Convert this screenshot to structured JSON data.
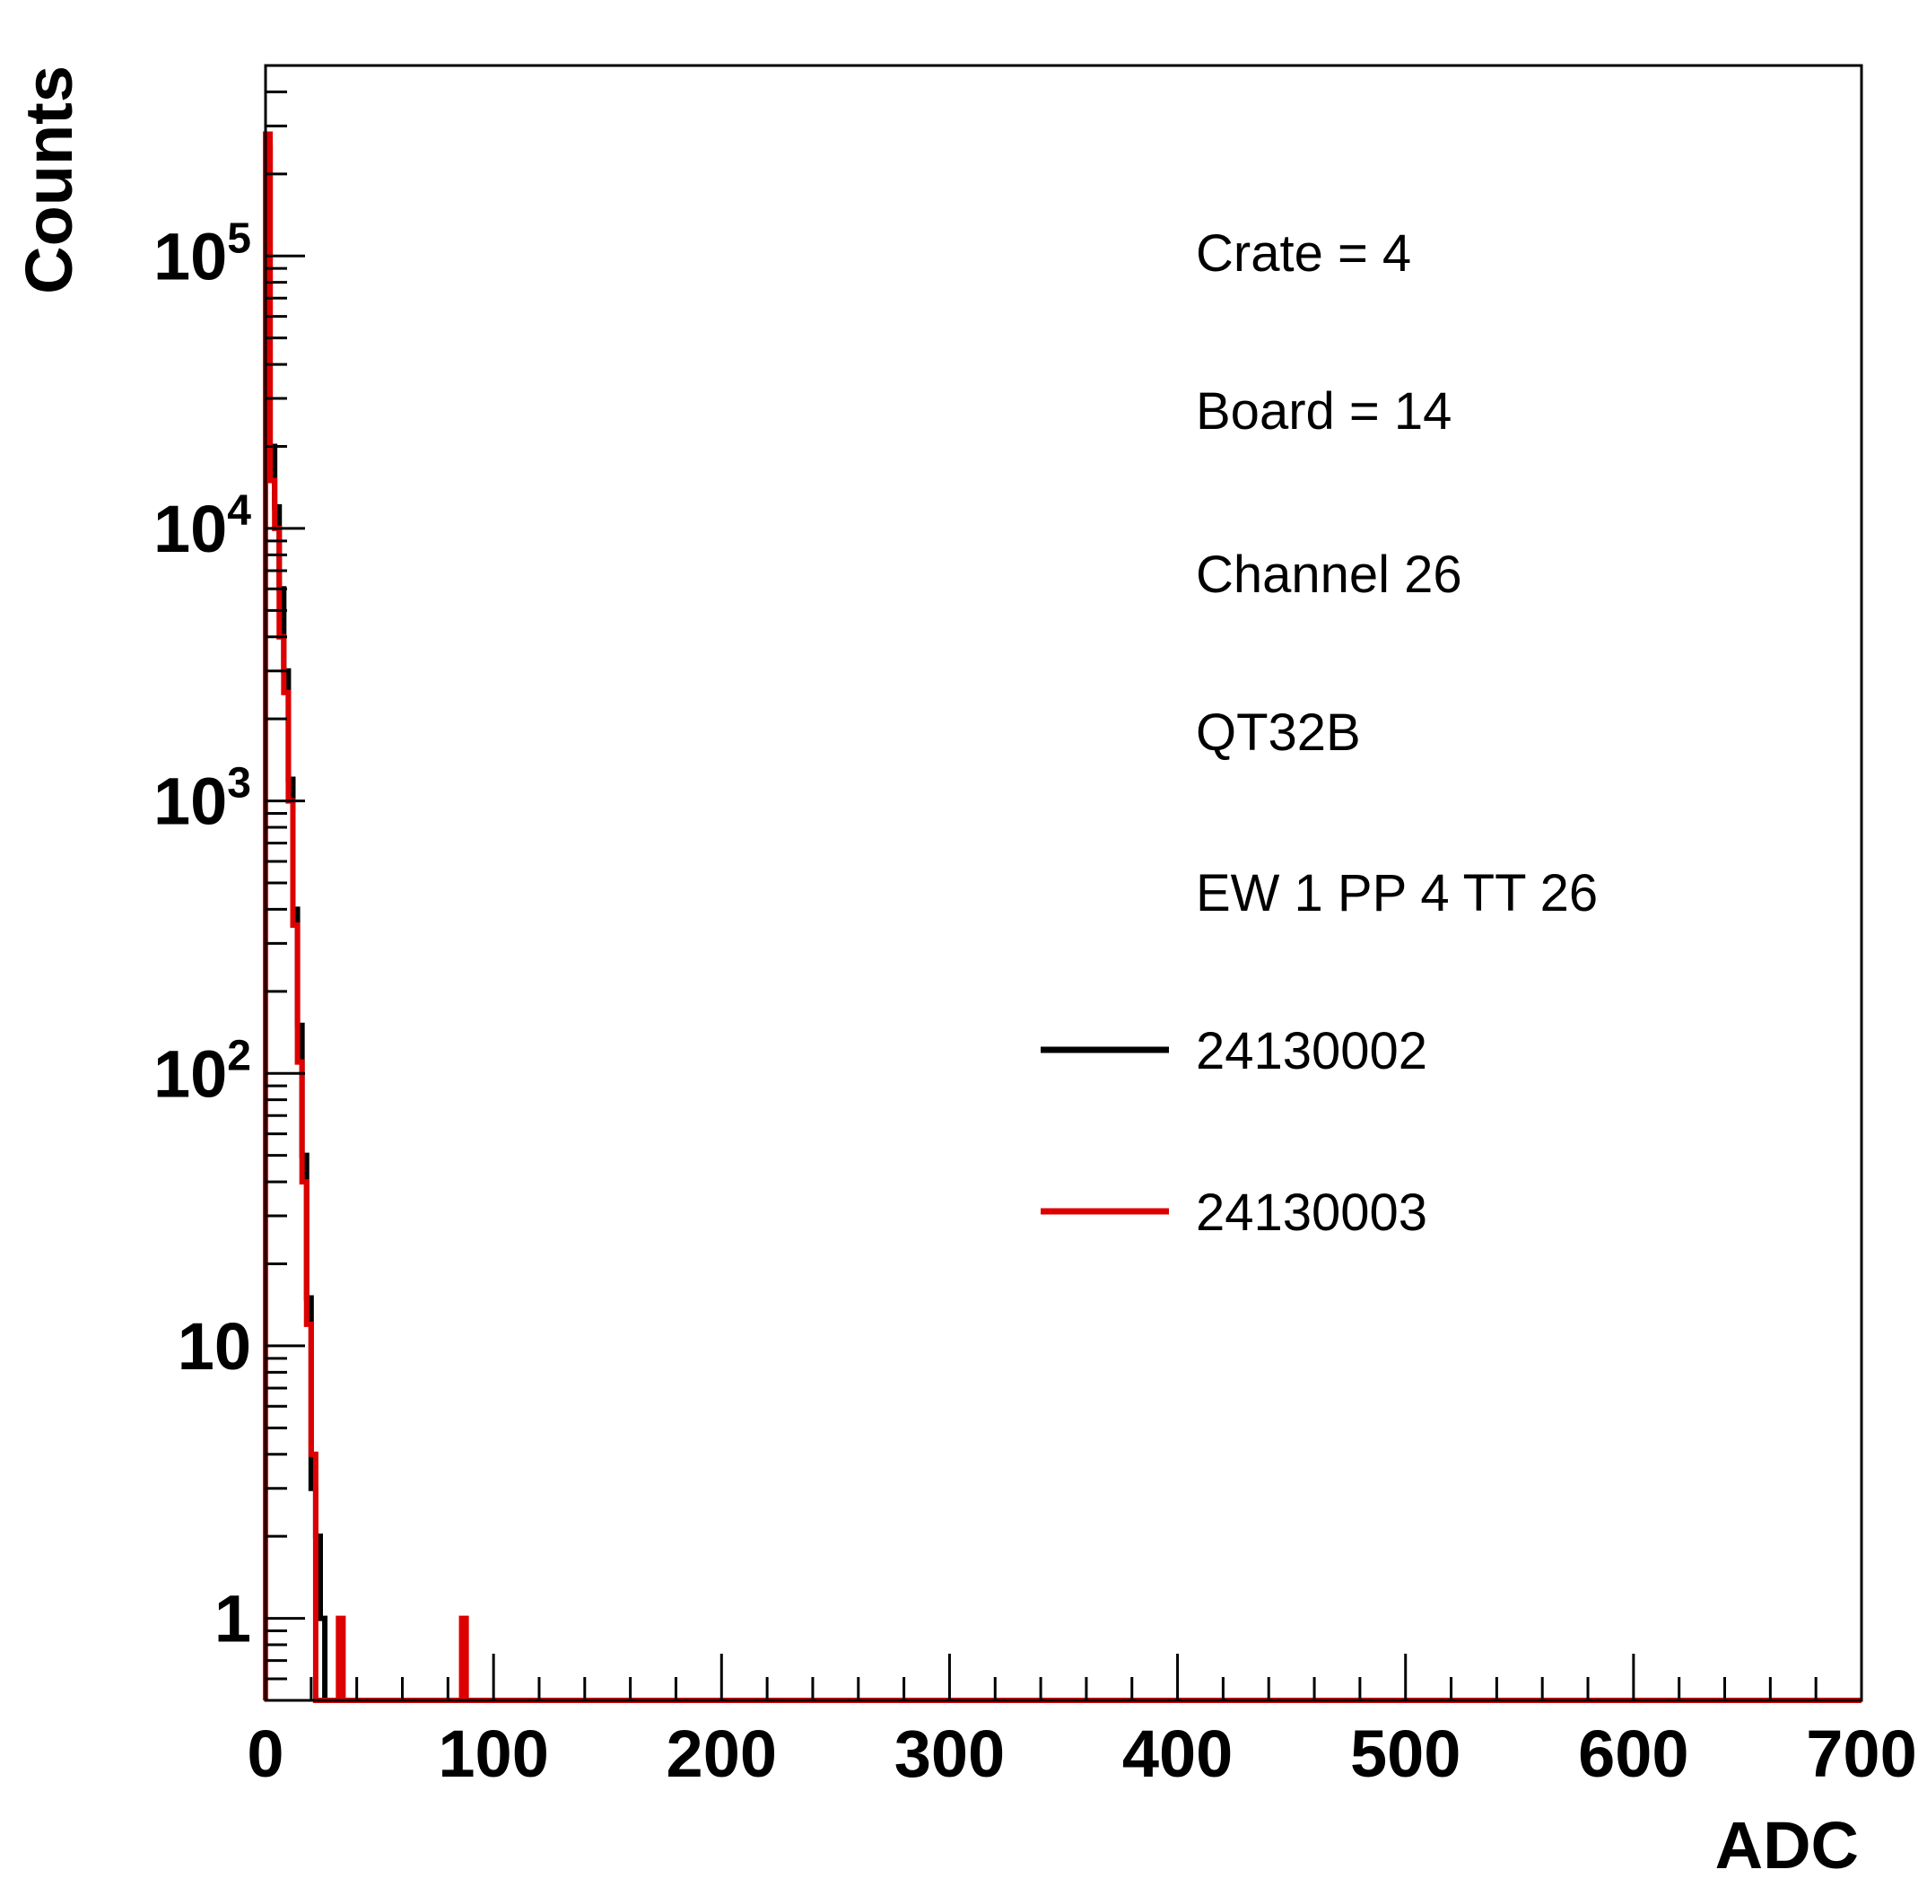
{
  "chart_data": {
    "type": "line",
    "style": "step-histogram",
    "title": "",
    "xlabel": "ADC",
    "ylabel": "Counts",
    "xlim": [
      0,
      700
    ],
    "ylim": [
      0.5,
      500000
    ],
    "yscale": "log",
    "grid": false,
    "x_ticks": [
      0,
      100,
      200,
      300,
      400,
      500,
      600,
      700
    ],
    "x_tick_labels": [
      "0",
      "100",
      "200",
      "300",
      "400",
      "500",
      "600",
      "700"
    ],
    "y_ticks": [
      {
        "value": 1,
        "base": "1",
        "exp": ""
      },
      {
        "value": 10,
        "base": "10",
        "exp": ""
      },
      {
        "value": 100,
        "base": "10",
        "exp": "2"
      },
      {
        "value": 1000,
        "base": "10",
        "exp": "3"
      },
      {
        "value": 10000,
        "base": "10",
        "exp": "4"
      },
      {
        "value": 100000,
        "base": "10",
        "exp": "5"
      }
    ],
    "legend": {
      "placement": "top-right",
      "lines": [
        "Crate = 4",
        "Board = 14",
        "Channel 26",
        "QT32B",
        "EW 1 PP 4 TT 26"
      ]
    },
    "series": [
      {
        "name": "24130002",
        "color": "#000000",
        "bin_width": 2,
        "bins": [
          {
            "x": 0,
            "y": 250000
          },
          {
            "x": 2,
            "y": 20000
          },
          {
            "x": 4,
            "y": 12000
          },
          {
            "x": 6,
            "y": 6000
          },
          {
            "x": 8,
            "y": 3000
          },
          {
            "x": 10,
            "y": 1200
          },
          {
            "x": 12,
            "y": 400
          },
          {
            "x": 14,
            "y": 150
          },
          {
            "x": 16,
            "y": 50
          },
          {
            "x": 18,
            "y": 15
          },
          {
            "x": 20,
            "y": 3
          },
          {
            "x": 22,
            "y": 2
          },
          {
            "x": 24,
            "y": 1
          }
        ]
      },
      {
        "name": "24130003",
        "color": "#dd0000",
        "bin_width": 2,
        "bins": [
          {
            "x": 0,
            "y": 280000
          },
          {
            "x": 2,
            "y": 15000
          },
          {
            "x": 4,
            "y": 10000
          },
          {
            "x": 6,
            "y": 4000
          },
          {
            "x": 8,
            "y": 2500
          },
          {
            "x": 10,
            "y": 1000
          },
          {
            "x": 12,
            "y": 350
          },
          {
            "x": 14,
            "y": 110
          },
          {
            "x": 16,
            "y": 40
          },
          {
            "x": 18,
            "y": 12
          },
          {
            "x": 20,
            "y": 4
          },
          {
            "x": 32,
            "y": 1
          },
          {
            "x": 86,
            "y": 1
          }
        ]
      }
    ]
  }
}
